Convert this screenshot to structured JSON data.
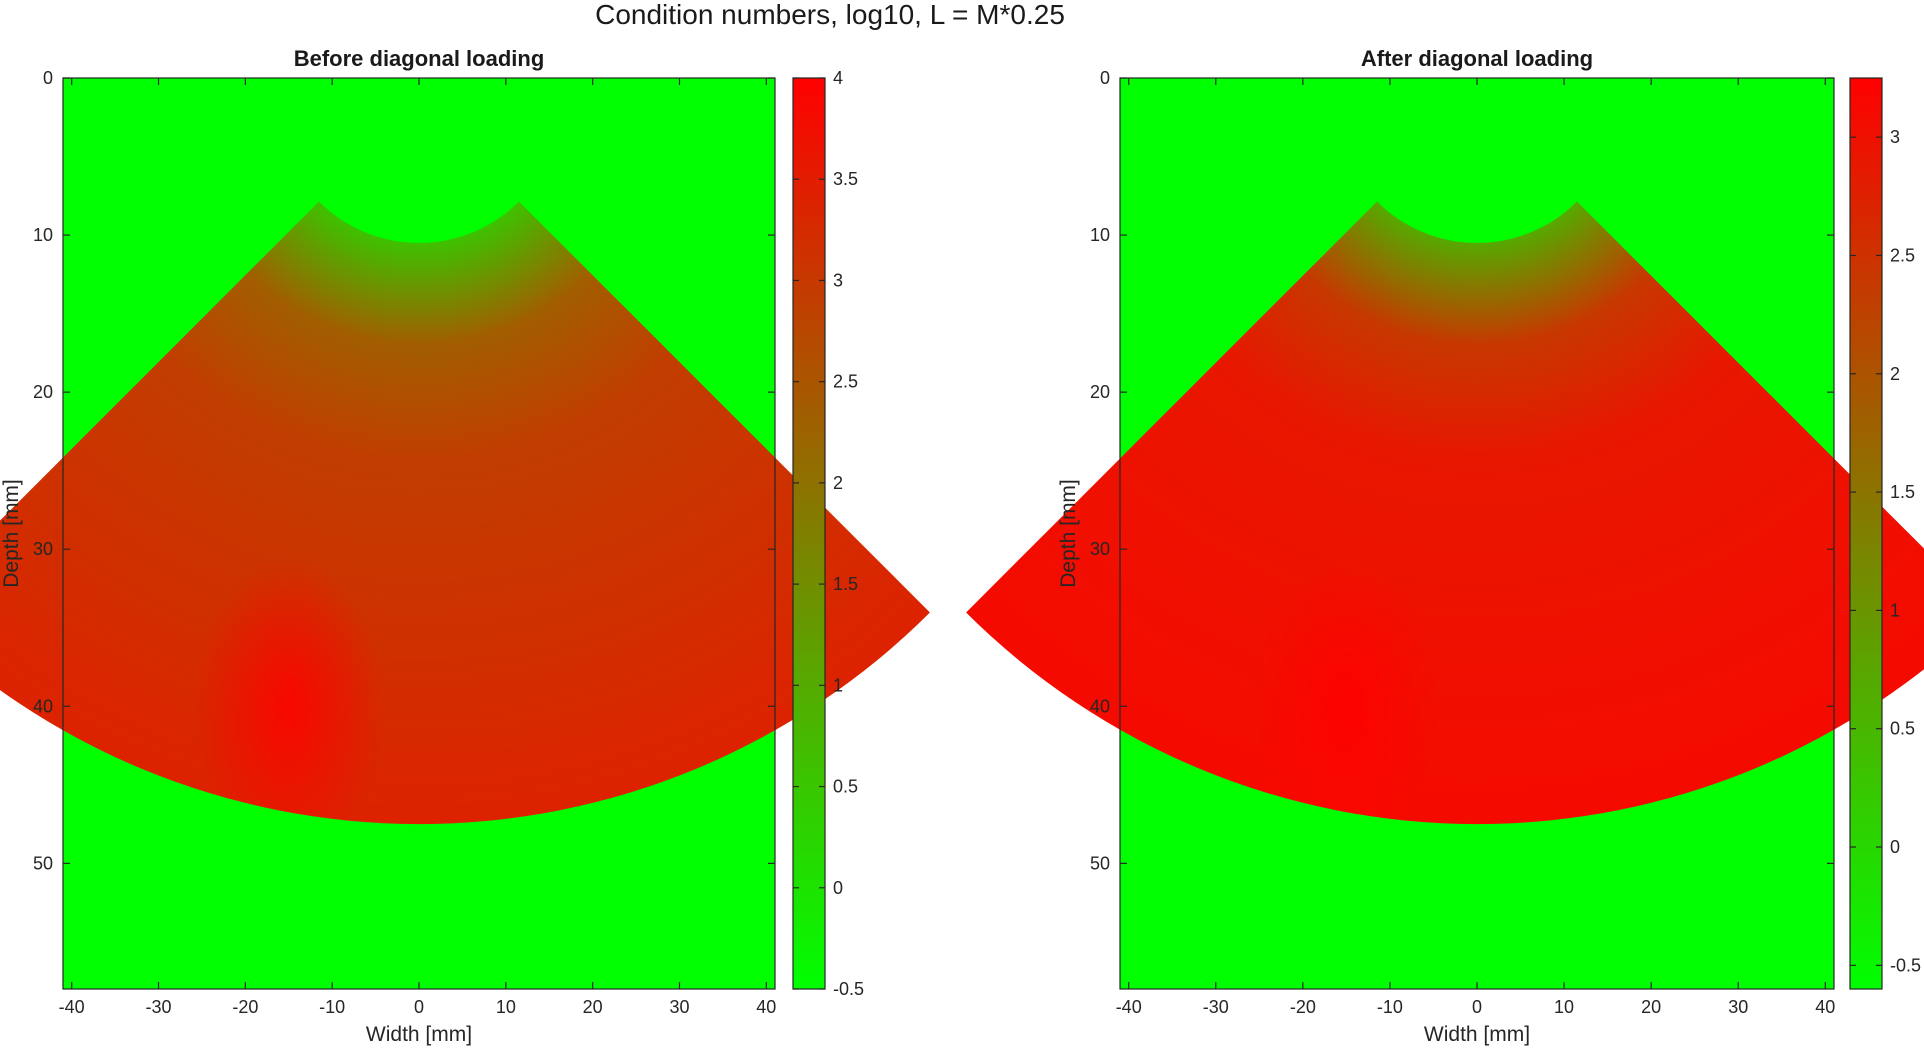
{
  "figure": {
    "title": "Condition numbers, log10, L = M*0.25"
  },
  "colors": {
    "low": "#00ff00",
    "high": "#ff0000",
    "mid": "#7f7f00",
    "axis": "#262626"
  },
  "chart_data": [
    {
      "type": "heatmap",
      "title": "Before diagonal loading",
      "xlabel": "Width [mm]",
      "ylabel": "Depth [mm]",
      "xlim": [
        -41,
        41
      ],
      "ylim": [
        0,
        58
      ],
      "y_reversed": true,
      "xticks": [
        -40,
        -30,
        -20,
        -10,
        0,
        10,
        20,
        30,
        40
      ],
      "yticks": [
        0,
        10,
        20,
        30,
        40,
        50
      ],
      "colormap": "green-to-red",
      "colorbar": {
        "range": [
          -0.5,
          4
        ],
        "ticks": [
          -0.5,
          0,
          0.5,
          1,
          1.5,
          2,
          2.5,
          3,
          3.5,
          4
        ],
        "tick_labels": [
          "-0.5",
          "0",
          "0.5",
          "1",
          "1.5",
          "2",
          "2.5",
          "3",
          "3.5",
          "4"
        ]
      },
      "background_value": -0.5,
      "sector": {
        "apex_depth": 1.5,
        "inner_radius": 9,
        "outer_radius": 46,
        "half_angle_deg": 45,
        "value_near": 0.6,
        "value_mid": 2.9,
        "value_far": 3.4,
        "peak_value": 4.0,
        "peak_location": [
          -15,
          40
        ]
      }
    },
    {
      "type": "heatmap",
      "title": "After diagonal loading",
      "xlabel": "Width [mm]",
      "ylabel": "Depth [mm]",
      "xlim": [
        -41,
        41
      ],
      "ylim": [
        0,
        58
      ],
      "y_reversed": true,
      "xticks": [
        -40,
        -30,
        -20,
        -10,
        0,
        10,
        20,
        30,
        40
      ],
      "yticks": [
        0,
        10,
        20,
        30,
        40,
        50
      ],
      "colormap": "green-to-red",
      "colorbar": {
        "range": [
          -0.6,
          3.25
        ],
        "ticks": [
          -0.5,
          0,
          0.5,
          1,
          1.5,
          2,
          2.5,
          3
        ],
        "tick_labels": [
          "-0.5",
          "0",
          "0.5",
          "1",
          "1.5",
          "2",
          "2.5",
          "3"
        ]
      },
      "background_value": -0.6,
      "sector": {
        "apex_depth": 1.5,
        "inner_radius": 9,
        "outer_radius": 46,
        "half_angle_deg": 45,
        "value_near": 0.7,
        "value_mid": 2.9,
        "value_far": 3.1,
        "peak_value": 3.25,
        "peak_location": [
          -15,
          40
        ]
      }
    }
  ]
}
